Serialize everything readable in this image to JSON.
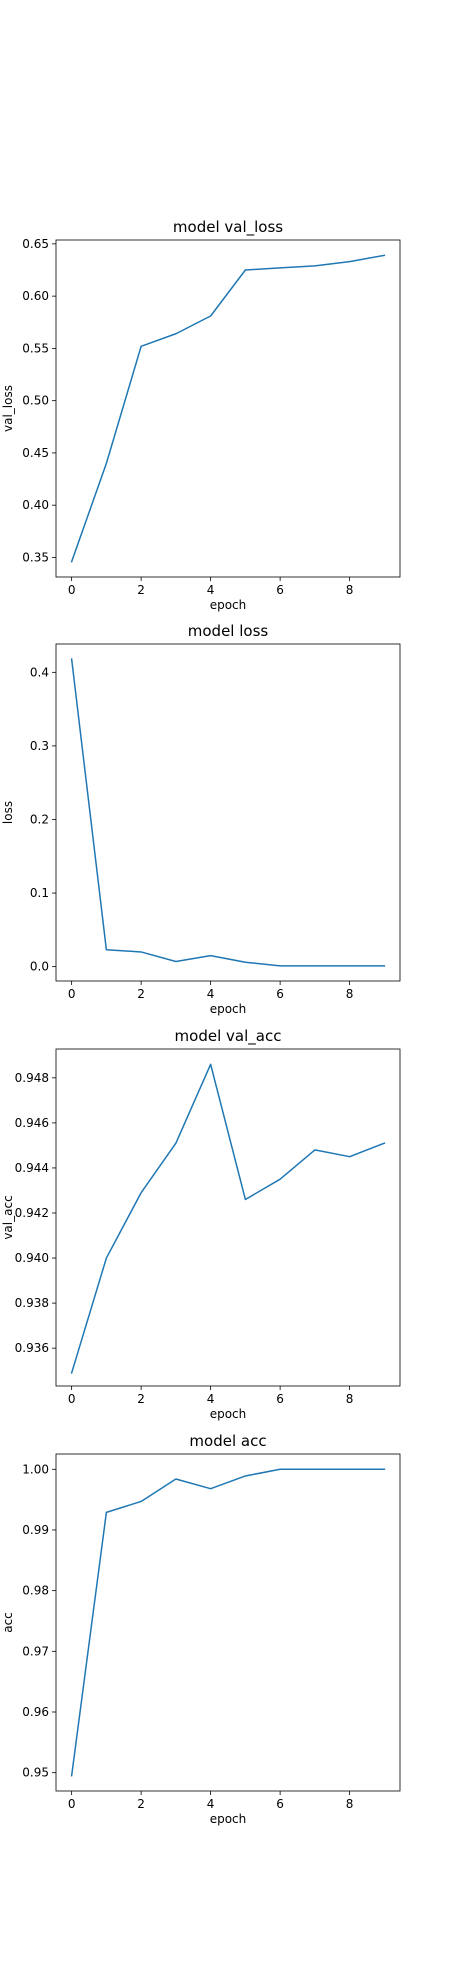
{
  "chart_data": [
    {
      "type": "line",
      "title": "model val_loss",
      "xlabel": "epoch",
      "ylabel": "val_loss",
      "x": [
        0,
        1,
        2,
        3,
        4,
        5,
        6,
        7,
        8,
        9
      ],
      "series": [
        {
          "values": [
            0.346,
            0.44,
            0.552,
            0.564,
            0.581,
            0.625,
            0.627,
            0.629,
            0.633,
            0.639
          ]
        }
      ],
      "xlim": [
        -0.45,
        9.45
      ],
      "ylim": [
        0.3313,
        0.6537
      ],
      "xticks": [
        0,
        2,
        4,
        6,
        8
      ],
      "yticks": [
        0.35,
        0.4,
        0.45,
        0.5,
        0.55,
        0.6,
        0.65
      ],
      "ytick_labels": [
        "0.35",
        "0.40",
        "0.45",
        "0.50",
        "0.55",
        "0.60",
        "0.65"
      ],
      "line_color": "#1f77b4",
      "grid": false,
      "legend": "none"
    },
    {
      "type": "line",
      "title": "model loss",
      "xlabel": "epoch",
      "ylabel": "loss",
      "x": [
        0,
        1,
        2,
        3,
        4,
        5,
        6,
        7,
        8,
        9
      ],
      "series": [
        {
          "values": [
            0.418,
            0.023,
            0.02,
            0.007,
            0.015,
            0.006,
            0.001,
            0.001,
            0.001,
            0.001
          ]
        }
      ],
      "xlim": [
        -0.45,
        9.45
      ],
      "ylim": [
        -0.0195,
        0.4385
      ],
      "xticks": [
        0,
        2,
        4,
        6,
        8
      ],
      "yticks": [
        0.0,
        0.1,
        0.2,
        0.3,
        0.4
      ],
      "ytick_labels": [
        "0.0",
        "0.1",
        "0.2",
        "0.3",
        "0.4"
      ],
      "line_color": "#1f77b4",
      "grid": false,
      "legend": "none"
    },
    {
      "type": "line",
      "title": "model val_acc",
      "xlabel": "epoch",
      "ylabel": "val_acc",
      "x": [
        0,
        1,
        2,
        3,
        4,
        5,
        6,
        7,
        8,
        9
      ],
      "series": [
        {
          "values": [
            0.9349,
            0.94,
            0.9429,
            0.9451,
            0.9486,
            0.9426,
            0.9435,
            0.9448,
            0.9445,
            0.9451
          ]
        }
      ],
      "xlim": [
        -0.45,
        9.45
      ],
      "ylim": [
        0.93432,
        0.94928
      ],
      "xticks": [
        0,
        2,
        4,
        6,
        8
      ],
      "yticks": [
        0.936,
        0.938,
        0.94,
        0.942,
        0.944,
        0.946,
        0.948
      ],
      "ytick_labels": [
        "0.936",
        "0.938",
        "0.940",
        "0.942",
        "0.944",
        "0.946",
        "0.948"
      ],
      "line_color": "#1f77b4",
      "grid": false,
      "legend": "none"
    },
    {
      "type": "line",
      "title": "model acc",
      "xlabel": "epoch",
      "ylabel": "acc",
      "x": [
        0,
        1,
        2,
        3,
        4,
        5,
        6,
        7,
        8,
        9
      ],
      "series": [
        {
          "values": [
            0.9495,
            0.9929,
            0.9947,
            0.9984,
            0.9968,
            0.9989,
            1.0,
            1.0,
            1.0,
            1.0
          ]
        }
      ],
      "xlim": [
        -0.45,
        9.45
      ],
      "ylim": [
        0.94698,
        1.00252
      ],
      "xticks": [
        0,
        2,
        4,
        6,
        8
      ],
      "yticks": [
        0.95,
        0.96,
        0.97,
        0.98,
        0.99,
        1.0
      ],
      "ytick_labels": [
        "0.95",
        "0.96",
        "0.97",
        "0.98",
        "0.99",
        "1.00"
      ],
      "line_color": "#1f77b4",
      "grid": false,
      "legend": "none"
    }
  ]
}
